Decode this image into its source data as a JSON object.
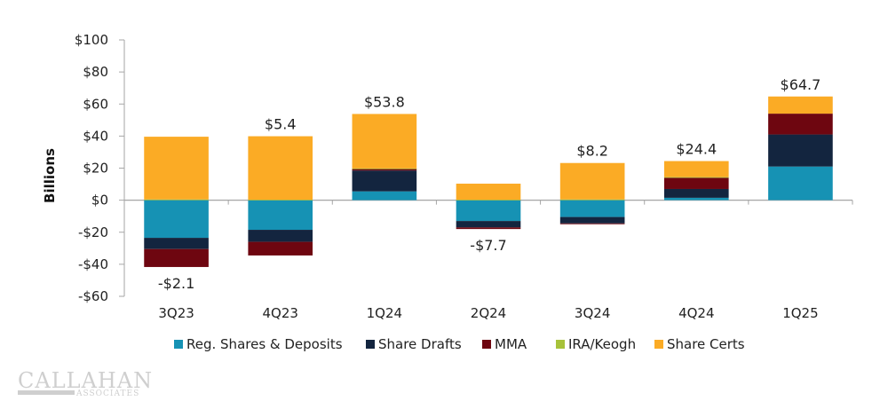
{
  "chart_data": {
    "type": "bar",
    "stacked": true,
    "title": "",
    "xlabel": "",
    "ylabel": "Billions",
    "ylim": [
      -60,
      100
    ],
    "yticks": [
      100,
      80,
      60,
      40,
      20,
      0,
      -20,
      -40,
      -60
    ],
    "ytick_labels": [
      "$100",
      "$80",
      "$60",
      "$40",
      "$20",
      "$0",
      "-$20",
      "-$40",
      "-$60"
    ],
    "categories": [
      "3Q23",
      "4Q23",
      "1Q24",
      "2Q24",
      "3Q24",
      "4Q24",
      "1Q25"
    ],
    "series": [
      {
        "name": "Reg. Shares & Deposits",
        "color": "#1692b4",
        "values": [
          -23.5,
          -18.5,
          5.5,
          -13.0,
          -10.5,
          1.5,
          21.0
        ]
      },
      {
        "name": "Share Drafts",
        "color": "#13253f",
        "values": [
          -7.0,
          -7.5,
          13.0,
          -4.0,
          -4.0,
          5.5,
          20.0
        ]
      },
      {
        "name": "MMA",
        "color": "#6e0610",
        "values": [
          -11.2,
          -8.5,
          1.0,
          -1.0,
          -0.5,
          7.0,
          13.0
        ]
      },
      {
        "name": "IRA/Keogh",
        "color": "#a7c23a",
        "values": [
          0.5,
          0.3,
          0.3,
          0.3,
          0.5,
          0.4,
          0.0
        ]
      },
      {
        "name": "Share Certs",
        "color": "#fbab25",
        "values": [
          39.1,
          39.6,
          34.0,
          10.0,
          22.7,
          10.0,
          10.7
        ]
      }
    ],
    "totals": [
      -2.1,
      5.4,
      53.8,
      -7.7,
      8.2,
      24.4,
      64.7
    ],
    "total_labels": [
      "-$2.1",
      "$5.4",
      "$53.8",
      "-$7.7",
      "$8.2",
      "$24.4",
      "$64.7"
    ],
    "legend": "bottom",
    "grid": false
  },
  "branding": {
    "logo_main": "CALLAHAN",
    "logo_sub": "ASSOCIATES"
  }
}
